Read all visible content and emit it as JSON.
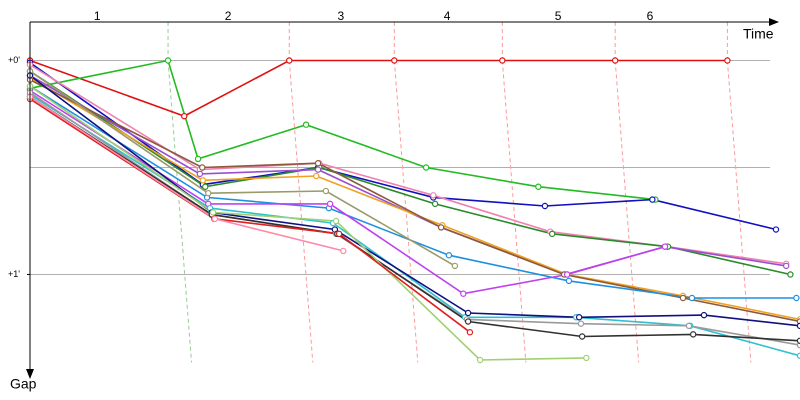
{
  "chart_data": {
    "type": "line",
    "x_label": "Time",
    "y_label": "Gap",
    "xlim": [
      0,
      12.83
    ],
    "ylim": [
      -0.18,
      1.54
    ],
    "xticks": [
      {
        "value": 1.12,
        "label": "1"
      },
      {
        "value": 3.3,
        "label": "2"
      },
      {
        "value": 5.18,
        "label": "3"
      },
      {
        "value": 6.95,
        "label": "4"
      },
      {
        "value": 8.8,
        "label": "5"
      },
      {
        "value": 10.33,
        "label": "6"
      }
    ],
    "yticks": [
      {
        "value": 0,
        "label": "+0'"
      },
      {
        "value": 1,
        "label": "+1'"
      }
    ],
    "grid_lines": [
      0,
      0.5,
      1
    ],
    "lap_lines": {
      "x": [
        2.3,
        4.32,
        6.07,
        7.87,
        9.75,
        11.62
      ],
      "colors": [
        "#9c9",
        "#f99",
        "#f99",
        "#f99",
        "#f99",
        "#f99"
      ]
    },
    "series": [
      {
        "color": "#e01010",
        "x": [
          0,
          2.57,
          4.32,
          6.07,
          7.87,
          9.75,
          11.62
        ],
        "y": [
          0,
          0.26,
          0,
          0,
          0,
          0,
          0
        ]
      },
      {
        "color": "#22bb22",
        "x": [
          0,
          2.3,
          2.8,
          4.6,
          6.6,
          8.47,
          10.42
        ],
        "y": [
          0.13,
          0,
          0.46,
          0.3,
          0.5,
          0.59,
          0.65
        ]
      },
      {
        "color": "#1010c0",
        "x": [
          0,
          2.88,
          4.8,
          6.72,
          8.58,
          10.37,
          12.43
        ],
        "y": [
          0.01,
          0.58,
          0.5,
          0.64,
          0.68,
          0.65,
          0.79
        ]
      },
      {
        "color": "#f080b0",
        "x": [
          0,
          2.83,
          4.82,
          6.72,
          8.67,
          10.62,
          12.6
        ],
        "y": [
          0.02,
          0.51,
          0.48,
          0.63,
          0.8,
          0.87,
          0.95
        ]
      },
      {
        "color": "#2a8a2a",
        "x": [
          0,
          2.92,
          4.82,
          6.75,
          8.7,
          10.63,
          12.67
        ],
        "y": [
          0.05,
          0.59,
          0.5,
          0.67,
          0.81,
          0.87,
          1.0
        ]
      },
      {
        "color": "#9a4fd0",
        "x": [
          0,
          2.83,
          4.8,
          6.85,
          8.92,
          10.58,
          12.6
        ],
        "y": [
          0.07,
          0.53,
          0.51,
          0.78,
          1.0,
          0.87,
          0.96
        ]
      },
      {
        "color": "#f0a020",
        "x": [
          0,
          2.88,
          4.77,
          6.87,
          8.95,
          10.88,
          12.83
        ],
        "y": [
          0.08,
          0.56,
          0.54,
          0.77,
          1.0,
          1.1,
          1.21
        ]
      },
      {
        "color": "#8a5a3a",
        "x": [
          0,
          2.87,
          4.8,
          6.85,
          8.9,
          10.88,
          12.83
        ],
        "y": [
          0.09,
          0.5,
          0.48,
          0.78,
          1.0,
          1.11,
          1.22
        ]
      },
      {
        "color": "#1e90e0",
        "x": [
          0,
          2.95,
          4.98,
          6.98,
          8.98,
          11.03,
          12.77
        ],
        "y": [
          0.12,
          0.64,
          0.69,
          0.91,
          1.03,
          1.11,
          1.11
        ]
      },
      {
        "color": "#c040f0",
        "x": [
          0,
          2.97,
          5.0,
          7.22,
          8.95,
          10.58
        ],
        "y": [
          0.14,
          0.67,
          0.67,
          1.09,
          1.0,
          0.87
        ]
      },
      {
        "color": "#9a9a6a",
        "x": [
          0,
          2.97,
          4.93,
          7.08
        ],
        "y": [
          0.05,
          0.62,
          0.61,
          0.96
        ]
      },
      {
        "color": "#30c0d0",
        "x": [
          0,
          3.0,
          5.05,
          7.25,
          9.1,
          11.0,
          12.83
        ],
        "y": [
          0.16,
          0.69,
          0.76,
          1.2,
          1.2,
          1.24,
          1.38
        ]
      },
      {
        "color": "#101080",
        "x": [
          0,
          3.03,
          5.08,
          7.3,
          9.15,
          11.23,
          12.83
        ],
        "y": [
          0.07,
          0.71,
          0.79,
          1.18,
          1.2,
          1.19,
          1.24
        ]
      },
      {
        "color": "#9a9a9a",
        "x": [
          0,
          3.02,
          5.1,
          7.28,
          9.18,
          10.98,
          12.83
        ],
        "y": [
          0.15,
          0.72,
          0.81,
          1.21,
          1.23,
          1.24,
          1.33
        ]
      },
      {
        "color": "#303030",
        "x": [
          0,
          3.03,
          5.12,
          7.3,
          9.2,
          11.05,
          12.83
        ],
        "y": [
          0.17,
          0.72,
          0.81,
          1.22,
          1.29,
          1.28,
          1.31
        ]
      },
      {
        "color": "#a0d070",
        "x": [
          0,
          3.05,
          5.1,
          7.5,
          9.27
        ],
        "y": [
          0.12,
          0.71,
          0.75,
          1.4,
          1.39
        ]
      },
      {
        "color": "#e02020",
        "x": [
          0,
          3.07,
          5.15,
          7.33
        ],
        "y": [
          0.18,
          0.74,
          0.81,
          1.27
        ]
      },
      {
        "color": "#ff88aa",
        "x": [
          0,
          3.08,
          5.22
        ],
        "y": [
          0.17,
          0.74,
          0.89
        ]
      }
    ]
  }
}
